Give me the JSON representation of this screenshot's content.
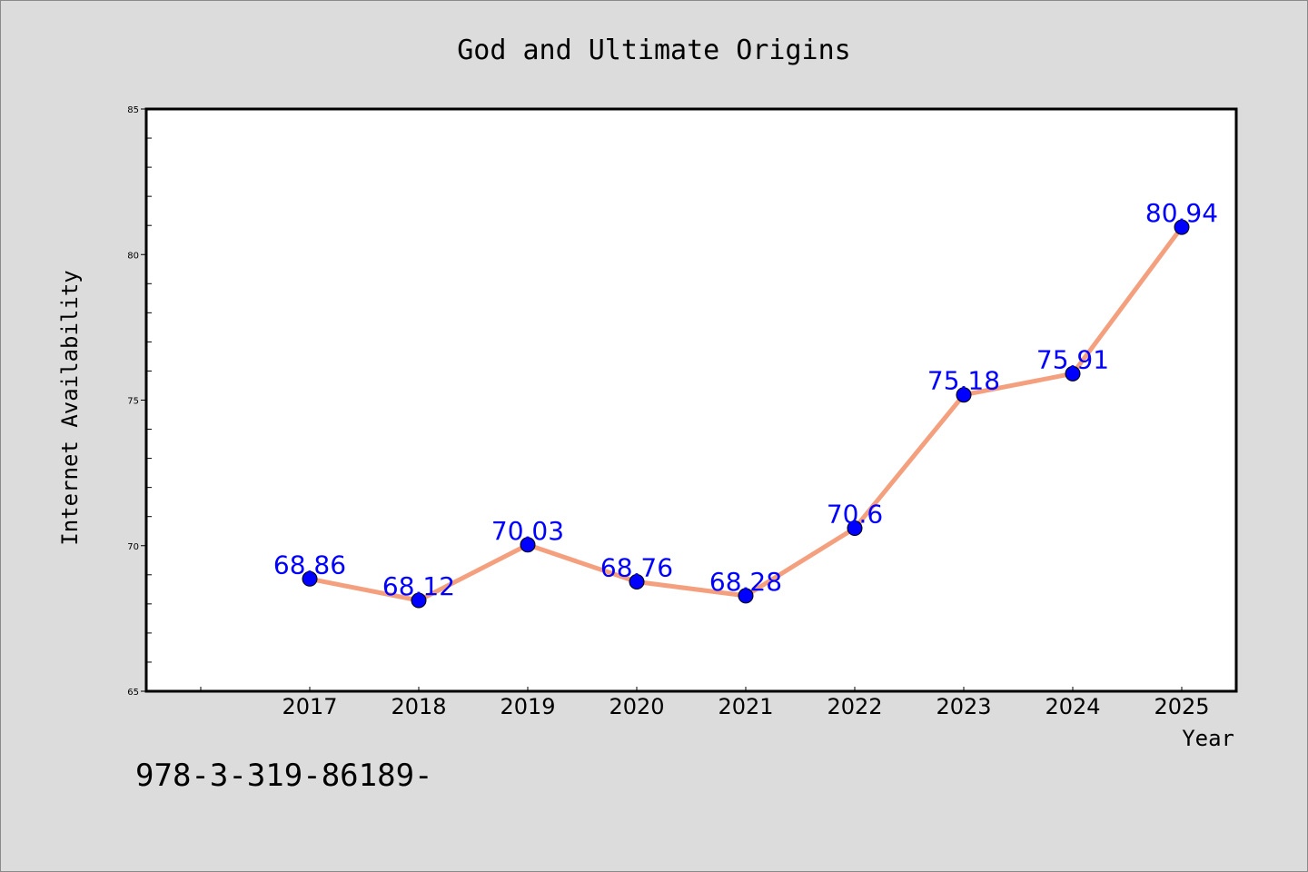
{
  "chart_data": {
    "type": "line",
    "title": "God and Ultimate Origins",
    "xlabel": "Year",
    "ylabel": "Internet Availability",
    "x": [
      "2017",
      "2018",
      "2019",
      "2020",
      "2021",
      "2022",
      "2023",
      "2024",
      "2025"
    ],
    "series": [
      {
        "values": [
          68.86,
          68.12,
          70.03,
          68.76,
          68.28,
          70.6,
          75.18,
          75.91,
          80.94
        ],
        "labels": [
          "68.86",
          "68.12",
          "70.03",
          "68.76",
          "68.28",
          "70.6",
          "75.18",
          "75.91",
          "80.94"
        ]
      }
    ],
    "ylim": [
      65,
      85
    ],
    "yticks": [
      65,
      70,
      75,
      80,
      85
    ],
    "xticks": [
      "2017",
      "2018",
      "2019",
      "2020",
      "2021",
      "2022",
      "2023",
      "2024",
      "2025"
    ],
    "grid": false,
    "colors": {
      "line": "#f4a07f",
      "marker": "#0000ff",
      "label": "#0000ff",
      "plot_background": "#ffffff",
      "figure_background": "#dcdcdc"
    }
  },
  "footer": {
    "text": "978-3-319-86189-"
  }
}
